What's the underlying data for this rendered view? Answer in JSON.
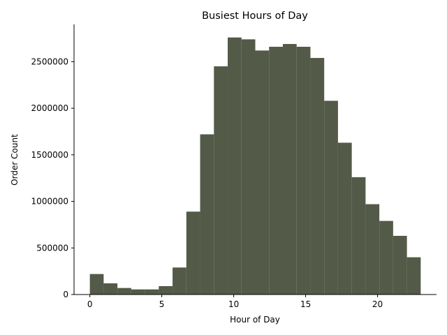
{
  "chart_data": {
    "type": "bar",
    "title": "Busiest Hours of Day",
    "xlabel": "Hour of Day",
    "ylabel": "Order Count",
    "x": [
      0,
      1,
      2,
      3,
      4,
      5,
      6,
      7,
      8,
      9,
      10,
      11,
      12,
      13,
      14,
      15,
      16,
      17,
      18,
      19,
      20,
      21,
      22
    ],
    "values": [
      220000,
      120000,
      70000,
      55000,
      55000,
      90000,
      290000,
      890000,
      1720000,
      2450000,
      2760000,
      2740000,
      2620000,
      2660000,
      2690000,
      2660000,
      2540000,
      2080000,
      1630000,
      1260000,
      970000,
      790000,
      630000
    ],
    "last_bin_value": 400000,
    "bin_range": [
      0,
      23
    ],
    "xlim": [
      -1.1,
      24.1
    ],
    "ylim": [
      0,
      2900000
    ],
    "x_ticks": [
      0,
      5,
      10,
      15,
      20
    ],
    "x_tick_labels": [
      "0",
      "5",
      "10",
      "15",
      "20"
    ],
    "y_ticks": [
      0,
      500000,
      1000000,
      1500000,
      2000000,
      2500000
    ],
    "y_tick_labels": [
      "0",
      "500000",
      "1000000",
      "1500000",
      "2000000",
      "2500000"
    ],
    "bar_color": "#535a47",
    "grid": false,
    "spines": "left-bottom"
  }
}
